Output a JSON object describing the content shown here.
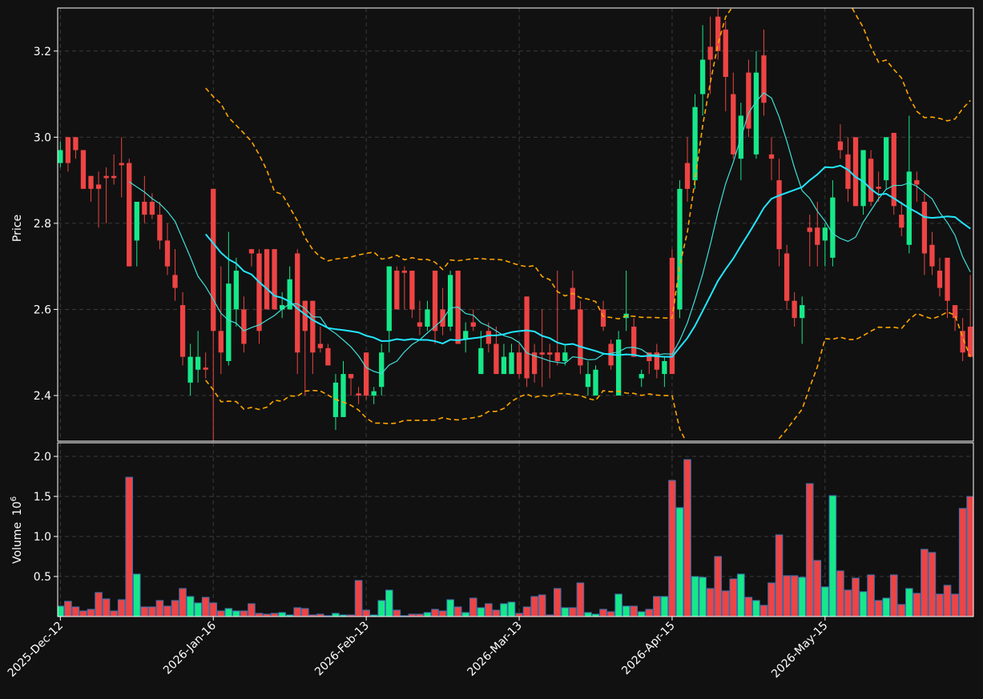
{
  "chart_data": {
    "type": "candlestick",
    "ylabel": "Price",
    "volume_ylabel": "Volume",
    "volume_multiplier": "10",
    "volume_exponent": "6",
    "up_color": "#16e889",
    "down_color": "#ee4444",
    "volume_edge_color": "#3a6fb0",
    "grid": true,
    "mav": [
      10,
      20
    ],
    "mav_colors": [
      "#3fe0d8",
      "#22e6ff"
    ],
    "bollinger": {
      "period": 20,
      "std": 2,
      "color": "#ffa500"
    },
    "xlim": [
      -0.35,
      119.4
    ],
    "ylim": [
      2.294,
      3.3
    ],
    "yticks": [
      2.4,
      2.6,
      2.8,
      {
        "value": 3.0,
        "label": "3.0"
      },
      3.2
    ],
    "volume_ylim": [
      0,
      2.17
    ],
    "volume_yticks": [
      0.5,
      {
        "value": 1.0,
        "label": "1.0"
      },
      1.5,
      {
        "value": 2.0,
        "label": "2.0"
      }
    ],
    "xticks": [
      {
        "value": 0,
        "label": "2025-Dec-12"
      },
      {
        "value": 20,
        "label": "2026-Jan-16"
      },
      {
        "value": 40,
        "label": "2026-Feb-13"
      },
      {
        "value": 60,
        "label": "2026-Mar-13"
      },
      {
        "value": 80,
        "label": "2026-Apr-15"
      },
      {
        "value": 100,
        "label": "2026-May-15"
      }
    ],
    "open": [
      2.94,
      3.0,
      3.0,
      2.97,
      2.91,
      2.89,
      2.91,
      2.91,
      2.94,
      2.94,
      2.76,
      2.85,
      2.85,
      2.82,
      2.76,
      2.68,
      2.61,
      2.43,
      2.46,
      2.465,
      2.88,
      2.55,
      2.48,
      2.6,
      2.6,
      2.74,
      2.73,
      2.74,
      2.74,
      2.6,
      2.6,
      2.73,
      2.62,
      2.62,
      2.52,
      2.51,
      2.35,
      2.35,
      2.45,
      2.405,
      2.5,
      2.4,
      2.42,
      2.55,
      2.69,
      2.69,
      2.69,
      2.57,
      2.56,
      2.69,
      2.6,
      2.56,
      2.69,
      2.53,
      2.57,
      2.45,
      2.55,
      2.52,
      2.45,
      2.45,
      2.5,
      2.63,
      2.5,
      2.5,
      2.5,
      2.5,
      2.48,
      2.65,
      2.6,
      2.42,
      2.4,
      2.6,
      2.52,
      2.4,
      2.58,
      2.56,
      2.44,
      2.5,
      2.5,
      2.45,
      2.72,
      2.6,
      2.94,
      2.9,
      3.1,
      3.21,
      3.28,
      3.25,
      3.1,
      2.95,
      3.15,
      2.96,
      3.19,
      2.96,
      2.9,
      2.73,
      2.62,
      2.58,
      2.79,
      2.79,
      2.76,
      2.72,
      2.99,
      2.96,
      3.0,
      2.84,
      2.95,
      2.885,
      2.9,
      3.01,
      2.82,
      2.75,
      2.9,
      2.85,
      2.75,
      2.69,
      2.72,
      2.61,
      2.55,
      2.56
    ],
    "high": [
      2.99,
      3.0,
      3.0,
      2.97,
      2.91,
      2.92,
      2.93,
      2.96,
      3.0,
      2.95,
      2.85,
      2.91,
      2.87,
      2.85,
      2.8,
      2.74,
      2.64,
      2.52,
      2.55,
      2.5,
      2.88,
      2.7,
      2.78,
      2.72,
      2.63,
      2.74,
      2.74,
      2.74,
      2.74,
      2.64,
      2.7,
      2.74,
      2.62,
      2.62,
      2.56,
      2.52,
      2.45,
      2.48,
      2.45,
      2.42,
      2.5,
      2.42,
      2.52,
      2.7,
      2.7,
      2.7,
      2.69,
      2.62,
      2.62,
      2.69,
      2.65,
      2.69,
      2.69,
      2.57,
      2.6,
      2.55,
      2.57,
      2.56,
      2.52,
      2.52,
      2.52,
      2.63,
      2.52,
      2.6,
      2.52,
      2.69,
      2.52,
      2.69,
      2.62,
      2.48,
      2.47,
      2.62,
      2.53,
      2.55,
      2.69,
      2.58,
      2.46,
      2.5,
      2.52,
      2.49,
      2.74,
      2.9,
      3.0,
      3.1,
      3.26,
      3.28,
      3.3,
      3.27,
      3.15,
      3.08,
      3.18,
      3.2,
      3.25,
      3.0,
      2.95,
      2.75,
      2.64,
      2.63,
      2.82,
      2.85,
      2.8,
      2.9,
      3.03,
      3.0,
      3.0,
      2.97,
      2.97,
      2.92,
      3.0,
      3.01,
      2.85,
      3.05,
      2.92,
      2.87,
      2.78,
      2.72,
      2.72,
      2.61,
      2.58,
      2.68
    ],
    "low": [
      2.93,
      2.92,
      2.95,
      2.88,
      2.85,
      2.79,
      2.8,
      2.89,
      2.86,
      2.7,
      2.7,
      2.8,
      2.81,
      2.74,
      2.68,
      2.62,
      2.47,
      2.4,
      2.43,
      2.44,
      2.29,
      2.45,
      2.47,
      2.56,
      2.5,
      2.7,
      2.52,
      2.6,
      2.6,
      2.58,
      2.6,
      2.45,
      2.4,
      2.45,
      2.5,
      2.47,
      2.32,
      2.35,
      2.4,
      2.38,
      2.39,
      2.38,
      2.4,
      2.5,
      2.6,
      2.6,
      2.58,
      2.54,
      2.55,
      2.52,
      2.54,
      2.55,
      2.52,
      2.5,
      2.55,
      2.45,
      2.5,
      2.45,
      2.45,
      2.45,
      2.44,
      2.42,
      2.43,
      2.42,
      2.44,
      2.47,
      2.47,
      2.6,
      2.45,
      2.4,
      2.4,
      2.55,
      2.46,
      2.4,
      2.55,
      2.49,
      2.42,
      2.45,
      2.44,
      2.42,
      2.45,
      2.58,
      2.85,
      2.88,
      3.05,
      3.1,
      3.18,
      3.06,
      2.95,
      2.9,
      3.0,
      2.95,
      3.05,
      2.9,
      2.7,
      2.6,
      2.56,
      2.52,
      2.7,
      2.7,
      2.7,
      2.7,
      2.95,
      2.85,
      2.84,
      2.82,
      2.84,
      2.85,
      2.88,
      2.82,
      2.77,
      2.73,
      2.85,
      2.68,
      2.68,
      2.63,
      2.58,
      2.55,
      2.48,
      2.49
    ],
    "close": [
      2.97,
      2.94,
      2.97,
      2.88,
      2.88,
      2.88,
      2.905,
      2.905,
      2.935,
      2.7,
      2.85,
      2.82,
      2.82,
      2.76,
      2.7,
      2.65,
      2.49,
      2.49,
      2.49,
      2.46,
      2.55,
      2.5,
      2.66,
      2.69,
      2.52,
      2.73,
      2.55,
      2.6,
      2.6,
      2.61,
      2.67,
      2.5,
      2.55,
      2.5,
      2.51,
      2.47,
      2.43,
      2.45,
      2.44,
      2.4,
      2.4,
      2.41,
      2.5,
      2.7,
      2.6,
      2.685,
      2.6,
      2.56,
      2.6,
      2.55,
      2.56,
      2.68,
      2.52,
      2.55,
      2.56,
      2.51,
      2.52,
      2.45,
      2.49,
      2.5,
      2.45,
      2.44,
      2.45,
      2.495,
      2.495,
      2.48,
      2.5,
      2.6,
      2.47,
      2.45,
      2.46,
      2.56,
      2.47,
      2.53,
      2.59,
      2.49,
      2.45,
      2.48,
      2.46,
      2.48,
      2.45,
      2.88,
      2.88,
      3.07,
      3.18,
      3.18,
      3.2,
      3.14,
      2.96,
      3.05,
      3.02,
      3.15,
      3.08,
      2.95,
      2.74,
      2.62,
      2.58,
      2.61,
      2.78,
      2.75,
      2.79,
      2.86,
      2.97,
      2.88,
      2.84,
      2.97,
      2.85,
      2.88,
      3.0,
      2.84,
      2.79,
      2.92,
      2.89,
      2.73,
      2.7,
      2.65,
      2.62,
      2.58,
      2.5,
      2.49
    ],
    "volume": [
      0.13,
      0.19,
      0.12,
      0.07,
      0.09,
      0.3,
      0.22,
      0.07,
      0.21,
      1.74,
      0.53,
      0.12,
      0.12,
      0.2,
      0.13,
      0.2,
      0.35,
      0.25,
      0.17,
      0.24,
      0.17,
      0.07,
      0.1,
      0.07,
      0.07,
      0.16,
      0.04,
      0.03,
      0.04,
      0.05,
      0.02,
      0.11,
      0.1,
      0.02,
      0.03,
      0.01,
      0.04,
      0.02,
      0.02,
      0.45,
      0.08,
      0.02,
      0.2,
      0.33,
      0.08,
      0.01,
      0.03,
      0.03,
      0.05,
      0.09,
      0.07,
      0.21,
      0.12,
      0.05,
      0.23,
      0.11,
      0.16,
      0.08,
      0.16,
      0.18,
      0.04,
      0.12,
      0.25,
      0.27,
      0.02,
      0.35,
      0.11,
      0.11,
      0.42,
      0.05,
      0.03,
      0.09,
      0.06,
      0.28,
      0.13,
      0.13,
      0.06,
      0.09,
      0.25,
      0.25,
      1.7,
      1.36,
      1.96,
      0.5,
      0.49,
      0.35,
      0.75,
      0.32,
      0.47,
      0.53,
      0.24,
      0.2,
      0.14,
      0.42,
      1.02,
      0.51,
      0.51,
      0.49,
      1.66,
      0.7,
      0.37,
      1.51,
      0.57,
      0.33,
      0.48,
      0.31,
      0.52,
      0.2,
      0.23,
      0.52,
      0.15,
      0.35,
      0.29,
      0.84,
      0.8,
      0.28,
      0.39,
      0.28,
      1.35,
      1.5
    ]
  }
}
